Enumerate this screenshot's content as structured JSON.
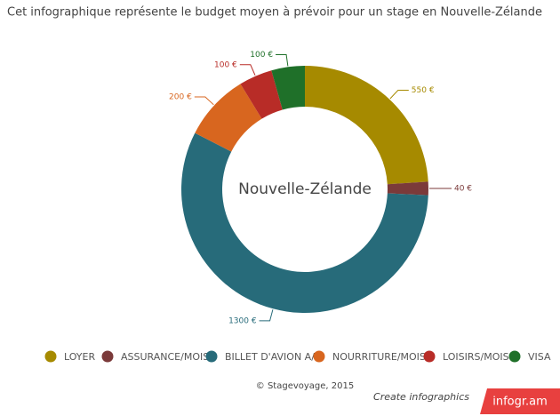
{
  "chart_data": {
    "type": "pie",
    "title": "Cet infographique représente le budget moyen à prévoir pour un stage en Nouvelle-Zélande",
    "center_text": "Nouvelle-Zélande",
    "categories": [
      "LOYER",
      "ASSURANCE/MOIS",
      "BILLET D'AVION A/R",
      "NOURRITURE/MOIS",
      "LOISIRS/MOIS",
      "VISA"
    ],
    "values": [
      550,
      40,
      1300,
      200,
      100,
      100
    ],
    "value_labels": [
      "550 €",
      "40 €",
      "1300 €",
      "200 €",
      "100 €",
      "100 €"
    ],
    "colors": [
      "#a68a00",
      "#7b3a3a",
      "#276b7a",
      "#d8661f",
      "#b82c27",
      "#1f7029"
    ],
    "source": "© Stagevoyage, 2015"
  },
  "branding": {
    "text": "Create infographics",
    "logo": "infogr.am"
  }
}
